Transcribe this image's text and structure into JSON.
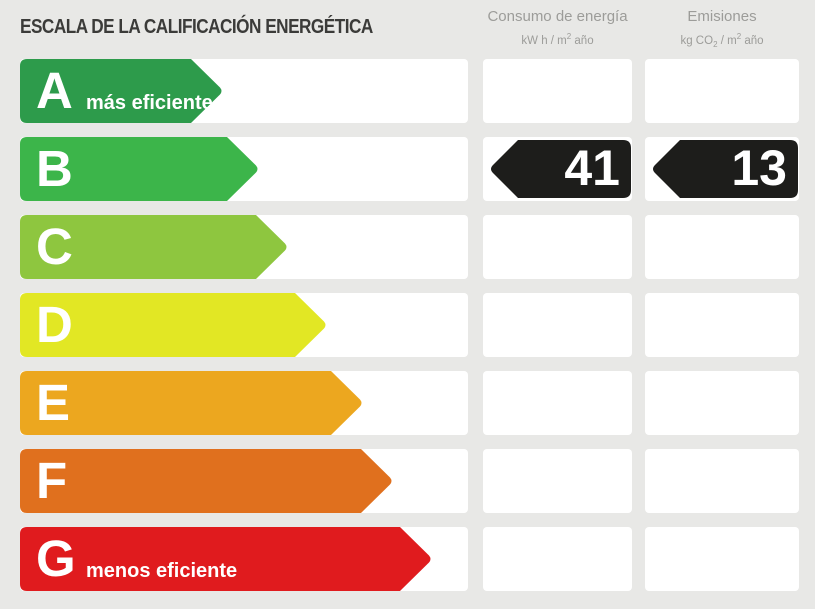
{
  "title": "ESCALA DE LA CALIFICACIÓN ENERGÉTICA",
  "columns": {
    "consumo": {
      "name": "Consumo de energía",
      "unit_text": "kW h / m² año",
      "unit_parts": [
        {
          "t": "kW h / m"
        },
        {
          "sup": "2"
        },
        {
          "t": " año"
        }
      ]
    },
    "emisiones": {
      "name": "Emisiones",
      "unit_text": "kg CO₂ / m² año",
      "unit_parts": [
        {
          "t": "kg CO"
        },
        {
          "sub": "2"
        },
        {
          "t": " / m"
        },
        {
          "sup": "2"
        },
        {
          "t": " año"
        }
      ]
    }
  },
  "ratings": [
    {
      "letter": "A",
      "label": "más eficiente",
      "color": "#2D9B4B",
      "arrow_width": 203
    },
    {
      "letter": "B",
      "label": "",
      "color": "#3CB54A",
      "arrow_width": 239
    },
    {
      "letter": "C",
      "label": "",
      "color": "#8EC63F",
      "arrow_width": 268
    },
    {
      "letter": "D",
      "label": "",
      "color": "#E2E724",
      "arrow_width": 307
    },
    {
      "letter": "E",
      "label": "",
      "color": "#ECA71F",
      "arrow_width": 343
    },
    {
      "letter": "F",
      "label": "",
      "color": "#E0701E",
      "arrow_width": 373
    },
    {
      "letter": "G",
      "label": "menos eficiente",
      "color": "#E01B1E",
      "arrow_width": 412
    }
  ],
  "values": {
    "rating": "B",
    "consumo": "41",
    "emisiones": "13"
  },
  "colors": {
    "background": "#E8E8E6",
    "panel": "#FFFFFF",
    "value_arrow": "#1D1D1B",
    "title": "#3B3B39",
    "header_text": "#9C9C99"
  },
  "chart_data": {
    "type": "bar",
    "orientation": "horizontal",
    "title": "ESCALA DE LA CALIFICACIÓN ENERGÉTICA",
    "categories": [
      "A",
      "B",
      "C",
      "D",
      "E",
      "F",
      "G"
    ],
    "series": [
      {
        "name": "scale arrow relative length (px)",
        "values": [
          203,
          239,
          268,
          307,
          343,
          373,
          412
        ]
      }
    ],
    "bar_colors": [
      "#2D9B4B",
      "#3CB54A",
      "#8EC63F",
      "#E2E724",
      "#ECA71F",
      "#E0701E",
      "#E01B1E"
    ],
    "category_labels": {
      "A": "más eficiente",
      "G": "menos eficiente"
    },
    "annotations": [
      {
        "category": "B",
        "series": "Consumo de energía",
        "value": 41,
        "unit": "kW h / m² año"
      },
      {
        "category": "B",
        "series": "Emisiones",
        "value": 13,
        "unit": "kg CO₂ / m² año"
      }
    ],
    "legend": false,
    "grid": false
  }
}
